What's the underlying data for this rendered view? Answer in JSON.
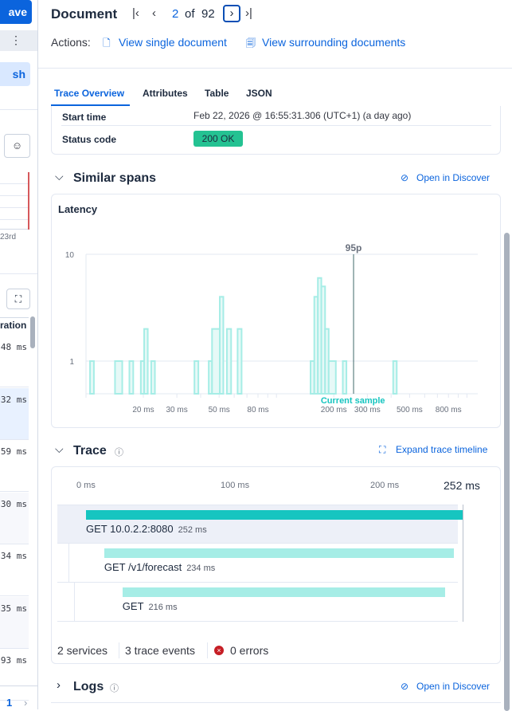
{
  "left_panel": {
    "save_button": "ave",
    "refresh_button": "sh",
    "chart_fragment_label": "23rd",
    "column_header": "ration",
    "durations": [
      "48 ms",
      "32 ms",
      "59 ms",
      "30 ms",
      "34 ms",
      "35 ms",
      "93 ms"
    ],
    "selected_row": 1,
    "page": "1"
  },
  "header": {
    "title": "Document",
    "current": "2",
    "of": "of",
    "total": "92",
    "actions_label": "Actions:",
    "view_single": "View single document",
    "view_surrounding": "View surrounding documents"
  },
  "tabs": [
    {
      "label": "Trace Overview",
      "active": true
    },
    {
      "label": "Attributes",
      "active": false
    },
    {
      "label": "Table",
      "active": false
    },
    {
      "label": "JSON",
      "active": false
    }
  ],
  "fields": [
    {
      "label": "Start time",
      "value": "Feb 22, 2026 @ 16:55:31.306 (UTC+1) (a day ago)"
    },
    {
      "label": "Status code",
      "value": "200 OK"
    }
  ],
  "similar_spans": {
    "title": "Similar spans",
    "open_discover": "Open in Discover",
    "chart_title": "Latency"
  },
  "chart_data": {
    "type": "area",
    "title": "Latency",
    "x_scale": "log",
    "y_scale": "log",
    "x_ticks": [
      "20 ms",
      "30 ms",
      "50 ms",
      "80 ms",
      "200 ms",
      "300 ms",
      "500 ms",
      "800 ms"
    ],
    "x_tick_values": [
      20,
      30,
      50,
      80,
      200,
      300,
      500,
      800
    ],
    "y_ticks": [
      "10",
      "1"
    ],
    "y_tick_values": [
      10,
      1
    ],
    "xlim": [
      10,
      1140
    ],
    "grid": true,
    "bins": [
      {
        "start_ms": 10.5,
        "end_ms": 11.0,
        "count": 1
      },
      {
        "start_ms": 14.2,
        "end_ms": 15.5,
        "count": 1
      },
      {
        "start_ms": 16.9,
        "end_ms": 17.7,
        "count": 1
      },
      {
        "start_ms": 19.4,
        "end_ms": 20.2,
        "count": 1
      },
      {
        "start_ms": 20.2,
        "end_ms": 21.1,
        "count": 2
      },
      {
        "start_ms": 22.0,
        "end_ms": 23.0,
        "count": 1
      },
      {
        "start_ms": 37.1,
        "end_ms": 38.9,
        "count": 1
      },
      {
        "start_ms": 44.1,
        "end_ms": 45.9,
        "count": 1
      },
      {
        "start_ms": 45.9,
        "end_ms": 50.4,
        "count": 2
      },
      {
        "start_ms": 50.4,
        "end_ms": 52.6,
        "count": 4
      },
      {
        "start_ms": 54.9,
        "end_ms": 57.8,
        "count": 2
      },
      {
        "start_ms": 62.5,
        "end_ms": 65.6,
        "count": 2
      },
      {
        "start_ms": 151,
        "end_ms": 158,
        "count": 1
      },
      {
        "start_ms": 158,
        "end_ms": 165,
        "count": 4
      },
      {
        "start_ms": 165,
        "end_ms": 172,
        "count": 6
      },
      {
        "start_ms": 172,
        "end_ms": 180,
        "count": 5
      },
      {
        "start_ms": 180,
        "end_ms": 188,
        "count": 2
      },
      {
        "start_ms": 188,
        "end_ms": 205,
        "count": 1
      },
      {
        "start_ms": 223,
        "end_ms": 233,
        "count": 1
      },
      {
        "start_ms": 410,
        "end_ms": 428,
        "count": 1
      }
    ],
    "annotations": [
      {
        "label": "95p",
        "x_ms": 254
      },
      {
        "label": "Current sample",
        "x_ms": 252
      }
    ],
    "color": "#a6ede6"
  },
  "trace": {
    "title": "Trace",
    "expand": "Expand trace timeline",
    "axis": [
      "0 ms",
      "100 ms",
      "200 ms"
    ],
    "total": "252 ms",
    "total_ms": 252,
    "spans": [
      {
        "name": "GET 10.0.2.2:8080",
        "duration": "252 ms",
        "start_ms": 0,
        "dur_ms": 252,
        "color": "#16c5c0"
      },
      {
        "name": "GET /v1/forecast",
        "duration": "234 ms",
        "start_ms": 9,
        "dur_ms": 234,
        "color": "#a6ede6"
      },
      {
        "name": "GET",
        "duration": "216 ms",
        "start_ms": 18,
        "dur_ms": 216,
        "color": "#a6ede6"
      }
    ],
    "summary": {
      "services": "2 services",
      "events": "3 trace events",
      "errors": "0 errors"
    }
  },
  "logs": {
    "title": "Logs",
    "open_discover": "Open in Discover"
  }
}
